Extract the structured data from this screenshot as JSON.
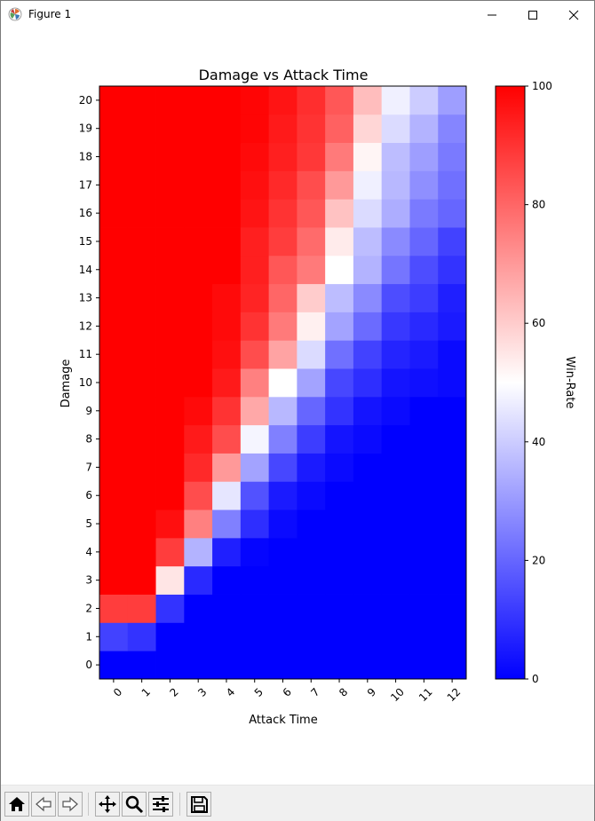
{
  "window": {
    "title": "Figure 1"
  },
  "toolbar": {
    "buttons": [
      {
        "name": "home-button",
        "icon": "home-icon"
      },
      {
        "name": "back-button",
        "icon": "back-arrow-icon"
      },
      {
        "name": "forward-button",
        "icon": "forward-arrow-icon"
      },
      {
        "name": "pan-button",
        "icon": "pan-move-icon"
      },
      {
        "name": "zoom-button",
        "icon": "zoom-magnifier-icon"
      },
      {
        "name": "configure-subplots-button",
        "icon": "sliders-icon"
      },
      {
        "name": "save-button",
        "icon": "floppy-disk-icon"
      }
    ]
  },
  "chart_data": {
    "type": "heatmap",
    "title": "Damage vs Attack Time",
    "xlabel": "Attack Time",
    "ylabel": "Damage",
    "x_categories": [
      "0",
      "1",
      "2",
      "3",
      "4",
      "5",
      "6",
      "7",
      "8",
      "9",
      "10",
      "11",
      "12"
    ],
    "y_categories": [
      "0",
      "1",
      "2",
      "3",
      "4",
      "5",
      "6",
      "7",
      "8",
      "9",
      "10",
      "11",
      "12",
      "13",
      "14",
      "15",
      "16",
      "17",
      "18",
      "19",
      "20"
    ],
    "colorbar": {
      "label": "Win-Rate",
      "range": [
        0,
        100
      ],
      "ticks": [
        "0",
        "20",
        "40",
        "60",
        "80",
        "100"
      ],
      "colormap": "bwr"
    },
    "colors": {
      "low": "#0000ff",
      "mid": "#ffffff",
      "high": "#ff0000"
    },
    "values": [
      [
        0,
        0,
        0,
        0,
        0,
        0,
        0,
        0,
        0,
        0,
        0,
        0,
        0
      ],
      [
        13,
        10,
        0,
        0,
        0,
        0,
        0,
        0,
        0,
        0,
        0,
        0,
        0
      ],
      [
        88,
        88,
        10,
        0,
        0,
        0,
        0,
        0,
        0,
        0,
        0,
        0,
        0
      ],
      [
        100,
        100,
        55,
        8,
        0,
        0,
        0,
        0,
        0,
        0,
        0,
        0,
        0
      ],
      [
        100,
        100,
        88,
        35,
        6,
        1,
        0,
        0,
        0,
        0,
        0,
        0,
        0
      ],
      [
        100,
        100,
        97,
        75,
        25,
        9,
        2,
        0,
        0,
        0,
        0,
        0,
        0
      ],
      [
        100,
        100,
        100,
        85,
        45,
        16,
        5,
        2,
        0,
        0,
        0,
        0,
        0
      ],
      [
        100,
        100,
        100,
        92,
        70,
        32,
        14,
        5,
        2,
        0,
        0,
        0,
        0
      ],
      [
        100,
        100,
        100,
        95,
        85,
        48,
        25,
        12,
        4,
        2,
        0,
        0,
        0
      ],
      [
        100,
        100,
        100,
        98,
        90,
        67,
        36,
        20,
        10,
        4,
        2,
        0,
        0
      ],
      [
        100,
        100,
        100,
        100,
        95,
        75,
        50,
        32,
        14,
        9,
        4,
        3,
        2
      ],
      [
        100,
        100,
        100,
        100,
        97,
        85,
        68,
        43,
        22,
        13,
        7,
        5,
        2
      ],
      [
        100,
        100,
        100,
        100,
        98,
        90,
        76,
        53,
        32,
        21,
        11,
        8,
        5
      ],
      [
        100,
        100,
        100,
        100,
        98,
        93,
        80,
        60,
        37,
        27,
        15,
        12,
        6
      ],
      [
        100,
        100,
        100,
        100,
        100,
        94,
        83,
        76,
        50,
        35,
        23,
        15,
        10
      ],
      [
        100,
        100,
        100,
        100,
        100,
        94,
        88,
        79,
        54,
        37,
        27,
        20,
        13
      ],
      [
        100,
        100,
        100,
        100,
        100,
        96,
        90,
        83,
        62,
        43,
        34,
        24,
        20
      ],
      [
        100,
        100,
        100,
        100,
        100,
        97,
        92,
        85,
        70,
        47,
        36,
        28,
        22
      ],
      [
        100,
        100,
        100,
        100,
        100,
        98,
        94,
        89,
        76,
        52,
        37,
        31,
        24
      ],
      [
        100,
        100,
        100,
        100,
        100,
        99,
        95,
        90,
        81,
        58,
        43,
        35,
        26
      ],
      [
        100,
        100,
        100,
        100,
        100,
        99,
        96,
        91,
        83,
        63,
        47,
        40,
        31
      ]
    ]
  }
}
